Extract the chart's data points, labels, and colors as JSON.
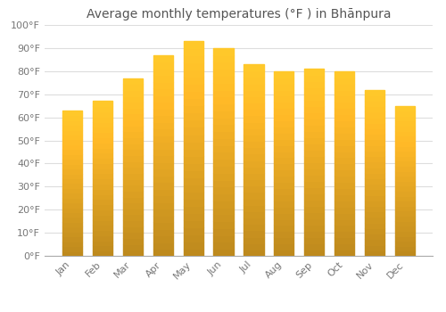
{
  "title": "Average monthly temperatures (°F ) in Bhānpura",
  "months": [
    "Jan",
    "Feb",
    "Mar",
    "Apr",
    "May",
    "Jun",
    "Jul",
    "Aug",
    "Sep",
    "Oct",
    "Nov",
    "Dec"
  ],
  "values": [
    63,
    67,
    77,
    87,
    93,
    90,
    83,
    80,
    81,
    80,
    72,
    65
  ],
  "bar_color_top": "#FDB827",
  "bar_color_bottom": "#F5A800",
  "background_color": "#FFFFFF",
  "grid_color": "#DDDDDD",
  "ylim": [
    0,
    100
  ],
  "ytick_step": 10,
  "title_fontsize": 10,
  "tick_fontsize": 8,
  "figsize": [
    5.0,
    3.5
  ],
  "dpi": 100
}
